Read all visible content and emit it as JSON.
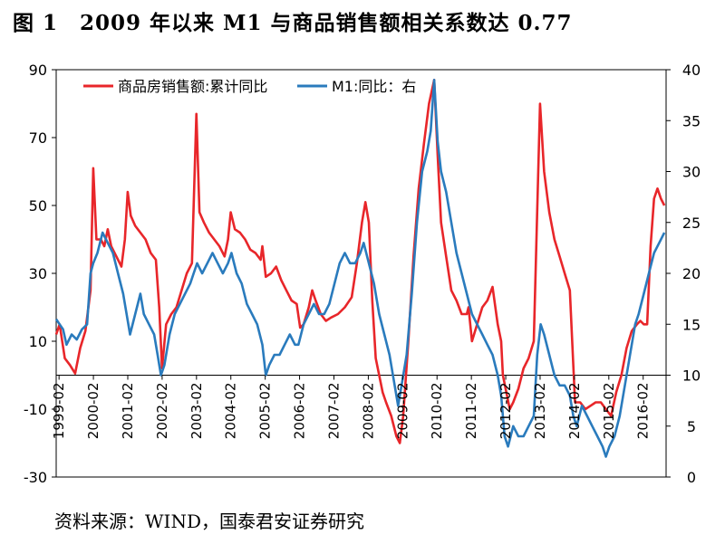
{
  "figure": {
    "title": "图 1　2009 年以来 M1 与商品销售额相关系数达 0.77",
    "source": "资料来源：WIND，国泰君安证券研究"
  },
  "chart_data": {
    "type": "line",
    "title": "",
    "xlabel": "",
    "ylabel": "",
    "x_ticks": [
      "1999-02",
      "2000-02",
      "2001-02",
      "2002-02",
      "2003-02",
      "2004-02",
      "2005-02",
      "2006-02",
      "2007-02",
      "2008-02",
      "2009-02",
      "2010-02",
      "2011-02",
      "2012-02",
      "2013-02",
      "2014-02",
      "2015-02",
      "2016-02"
    ],
    "x_range": [
      1999.0,
      2016.75
    ],
    "y_left": {
      "ticks": [
        90,
        70,
        50,
        30,
        10,
        -10,
        -30
      ],
      "range": [
        -30,
        90
      ]
    },
    "y_right": {
      "ticks": [
        40,
        35,
        30,
        25,
        20,
        15,
        10,
        5,
        0
      ],
      "range": [
        0,
        40
      ]
    },
    "zero_line": 0,
    "legend_position": "top-left",
    "series": [
      {
        "name": "商品房销售额:累计同比",
        "axis": "left",
        "color": "#e8262a",
        "points": [
          [
            1999.0,
            12
          ],
          [
            1999.1,
            15
          ],
          [
            1999.25,
            5
          ],
          [
            1999.4,
            3
          ],
          [
            1999.55,
            0.5
          ],
          [
            1999.7,
            8
          ],
          [
            1999.85,
            13
          ],
          [
            2000.0,
            25
          ],
          [
            2000.08,
            61
          ],
          [
            2000.17,
            40
          ],
          [
            2000.3,
            40
          ],
          [
            2000.4,
            38
          ],
          [
            2000.5,
            43
          ],
          [
            2000.6,
            38
          ],
          [
            2000.75,
            35
          ],
          [
            2000.9,
            32
          ],
          [
            2001.0,
            40
          ],
          [
            2001.08,
            54
          ],
          [
            2001.17,
            47
          ],
          [
            2001.3,
            44
          ],
          [
            2001.45,
            42
          ],
          [
            2001.6,
            40
          ],
          [
            2001.75,
            36
          ],
          [
            2001.9,
            34
          ],
          [
            2002.0,
            20
          ],
          [
            2002.08,
            2
          ],
          [
            2002.2,
            15
          ],
          [
            2002.35,
            18
          ],
          [
            2002.5,
            20
          ],
          [
            2002.65,
            25
          ],
          [
            2002.8,
            30
          ],
          [
            2002.95,
            33
          ],
          [
            2003.08,
            77
          ],
          [
            2003.17,
            48
          ],
          [
            2003.3,
            45
          ],
          [
            2003.45,
            42
          ],
          [
            2003.6,
            40
          ],
          [
            2003.75,
            38
          ],
          [
            2003.9,
            35
          ],
          [
            2004.0,
            40
          ],
          [
            2004.08,
            48
          ],
          [
            2004.2,
            43
          ],
          [
            2004.35,
            42
          ],
          [
            2004.5,
            40
          ],
          [
            2004.65,
            37
          ],
          [
            2004.8,
            36
          ],
          [
            2004.95,
            34
          ],
          [
            2005.0,
            38
          ],
          [
            2005.1,
            29
          ],
          [
            2005.25,
            30
          ],
          [
            2005.4,
            32
          ],
          [
            2005.55,
            28
          ],
          [
            2005.7,
            25
          ],
          [
            2005.85,
            22
          ],
          [
            2006.0,
            21
          ],
          [
            2006.1,
            14
          ],
          [
            2006.2,
            15
          ],
          [
            2006.35,
            20
          ],
          [
            2006.45,
            25
          ],
          [
            2006.55,
            22
          ],
          [
            2006.7,
            18
          ],
          [
            2006.85,
            16
          ],
          [
            2007.0,
            17
          ],
          [
            2007.2,
            18
          ],
          [
            2007.4,
            20
          ],
          [
            2007.6,
            23
          ],
          [
            2007.75,
            33
          ],
          [
            2007.9,
            45
          ],
          [
            2008.0,
            51
          ],
          [
            2008.1,
            45
          ],
          [
            2008.2,
            22
          ],
          [
            2008.3,
            5
          ],
          [
            2008.4,
            0
          ],
          [
            2008.5,
            -5
          ],
          [
            2008.6,
            -8
          ],
          [
            2008.75,
            -12
          ],
          [
            2008.9,
            -18
          ],
          [
            2009.0,
            -20
          ],
          [
            2009.1,
            -12
          ],
          [
            2009.25,
            10
          ],
          [
            2009.4,
            35
          ],
          [
            2009.55,
            55
          ],
          [
            2009.7,
            68
          ],
          [
            2009.85,
            80
          ],
          [
            2010.0,
            87
          ],
          [
            2010.1,
            65
          ],
          [
            2010.2,
            45
          ],
          [
            2010.35,
            35
          ],
          [
            2010.5,
            25
          ],
          [
            2010.65,
            22
          ],
          [
            2010.8,
            18
          ],
          [
            2010.95,
            18
          ],
          [
            2011.0,
            20
          ],
          [
            2011.1,
            10
          ],
          [
            2011.25,
            15
          ],
          [
            2011.4,
            20
          ],
          [
            2011.55,
            22
          ],
          [
            2011.7,
            26
          ],
          [
            2011.85,
            15
          ],
          [
            2011.95,
            10
          ],
          [
            2012.0,
            0
          ],
          [
            2012.1,
            -5
          ],
          [
            2012.2,
            -10
          ],
          [
            2012.3,
            -8
          ],
          [
            2012.45,
            -4
          ],
          [
            2012.6,
            2
          ],
          [
            2012.75,
            5
          ],
          [
            2012.9,
            10
          ],
          [
            2013.08,
            80
          ],
          [
            2013.2,
            60
          ],
          [
            2013.35,
            48
          ],
          [
            2013.5,
            40
          ],
          [
            2013.65,
            35
          ],
          [
            2013.8,
            30
          ],
          [
            2013.95,
            25
          ],
          [
            2014.1,
            -8
          ],
          [
            2014.25,
            -8
          ],
          [
            2014.4,
            -10
          ],
          [
            2014.55,
            -9
          ],
          [
            2014.7,
            -8
          ],
          [
            2014.85,
            -8
          ],
          [
            2015.0,
            -10
          ],
          [
            2015.15,
            -12
          ],
          [
            2015.3,
            -5
          ],
          [
            2015.45,
            0
          ],
          [
            2015.6,
            8
          ],
          [
            2015.75,
            13
          ],
          [
            2015.9,
            15
          ],
          [
            2016.0,
            16
          ],
          [
            2016.1,
            15
          ],
          [
            2016.2,
            15
          ],
          [
            2016.3,
            38
          ],
          [
            2016.4,
            52
          ],
          [
            2016.5,
            55
          ],
          [
            2016.6,
            52
          ],
          [
            2016.7,
            50
          ]
        ]
      },
      {
        "name": "M1:同比：右",
        "axis": "right",
        "color": "#2a7bbd",
        "points": [
          [
            1999.0,
            15.5
          ],
          [
            1999.1,
            15
          ],
          [
            1999.2,
            14.5
          ],
          [
            1999.3,
            13
          ],
          [
            1999.45,
            14
          ],
          [
            1999.6,
            13.5
          ],
          [
            1999.75,
            14.5
          ],
          [
            1999.9,
            15
          ],
          [
            2000.0,
            20
          ],
          [
            2000.08,
            21
          ],
          [
            2000.2,
            22
          ],
          [
            2000.35,
            24
          ],
          [
            2000.5,
            23
          ],
          [
            2000.65,
            22
          ],
          [
            2000.8,
            20
          ],
          [
            2000.95,
            18
          ],
          [
            2001.05,
            16
          ],
          [
            2001.15,
            14
          ],
          [
            2001.3,
            16
          ],
          [
            2001.45,
            18
          ],
          [
            2001.55,
            16
          ],
          [
            2001.7,
            15
          ],
          [
            2001.85,
            14
          ],
          [
            2001.95,
            12
          ],
          [
            2002.05,
            10
          ],
          [
            2002.15,
            11
          ],
          [
            2002.3,
            14
          ],
          [
            2002.45,
            16
          ],
          [
            2002.6,
            17
          ],
          [
            2002.75,
            18
          ],
          [
            2002.9,
            19
          ],
          [
            2003.0,
            20
          ],
          [
            2003.1,
            21
          ],
          [
            2003.25,
            20
          ],
          [
            2003.4,
            21
          ],
          [
            2003.55,
            22
          ],
          [
            2003.7,
            21
          ],
          [
            2003.85,
            20
          ],
          [
            2004.0,
            21
          ],
          [
            2004.1,
            22
          ],
          [
            2004.25,
            20
          ],
          [
            2004.4,
            19
          ],
          [
            2004.55,
            17
          ],
          [
            2004.7,
            16
          ],
          [
            2004.85,
            15
          ],
          [
            2005.0,
            13
          ],
          [
            2005.1,
            10
          ],
          [
            2005.2,
            11
          ],
          [
            2005.35,
            12
          ],
          [
            2005.5,
            12
          ],
          [
            2005.65,
            13
          ],
          [
            2005.8,
            14
          ],
          [
            2005.95,
            13
          ],
          [
            2006.05,
            13
          ],
          [
            2006.2,
            15
          ],
          [
            2006.35,
            16
          ],
          [
            2006.5,
            17
          ],
          [
            2006.65,
            16
          ],
          [
            2006.8,
            16
          ],
          [
            2006.95,
            17
          ],
          [
            2007.1,
            19
          ],
          [
            2007.25,
            21
          ],
          [
            2007.4,
            22
          ],
          [
            2007.55,
            21
          ],
          [
            2007.7,
            21
          ],
          [
            2007.85,
            22
          ],
          [
            2007.95,
            23
          ],
          [
            2008.1,
            21
          ],
          [
            2008.25,
            19
          ],
          [
            2008.4,
            16
          ],
          [
            2008.55,
            14
          ],
          [
            2008.7,
            12
          ],
          [
            2008.85,
            9
          ],
          [
            2008.95,
            7
          ],
          [
            2009.05,
            9
          ],
          [
            2009.2,
            12
          ],
          [
            2009.35,
            18
          ],
          [
            2009.5,
            25
          ],
          [
            2009.65,
            30
          ],
          [
            2009.8,
            32
          ],
          [
            2009.9,
            34
          ],
          [
            2010.0,
            39
          ],
          [
            2010.1,
            33
          ],
          [
            2010.2,
            30
          ],
          [
            2010.35,
            28
          ],
          [
            2010.5,
            25
          ],
          [
            2010.65,
            22
          ],
          [
            2010.8,
            20
          ],
          [
            2010.95,
            18
          ],
          [
            2011.1,
            16
          ],
          [
            2011.25,
            15
          ],
          [
            2011.4,
            14
          ],
          [
            2011.55,
            13
          ],
          [
            2011.7,
            12
          ],
          [
            2011.85,
            10
          ],
          [
            2011.95,
            8
          ],
          [
            2012.05,
            4
          ],
          [
            2012.15,
            3
          ],
          [
            2012.3,
            5
          ],
          [
            2012.45,
            4
          ],
          [
            2012.6,
            4
          ],
          [
            2012.75,
            5
          ],
          [
            2012.9,
            6
          ],
          [
            2013.0,
            12
          ],
          [
            2013.1,
            15
          ],
          [
            2013.2,
            14
          ],
          [
            2013.35,
            12
          ],
          [
            2013.5,
            10
          ],
          [
            2013.65,
            9
          ],
          [
            2013.8,
            9
          ],
          [
            2013.95,
            8
          ],
          [
            2014.05,
            6
          ],
          [
            2014.15,
            5
          ],
          [
            2014.3,
            7
          ],
          [
            2014.45,
            6
          ],
          [
            2014.6,
            5
          ],
          [
            2014.75,
            4
          ],
          [
            2014.9,
            3
          ],
          [
            2015.0,
            2
          ],
          [
            2015.1,
            3
          ],
          [
            2015.25,
            4
          ],
          [
            2015.4,
            6
          ],
          [
            2015.55,
            9
          ],
          [
            2015.7,
            12
          ],
          [
            2015.85,
            15
          ],
          [
            2015.95,
            16
          ],
          [
            2016.1,
            18
          ],
          [
            2016.25,
            20
          ],
          [
            2016.4,
            22
          ],
          [
            2016.55,
            23
          ],
          [
            2016.7,
            24
          ]
        ]
      }
    ]
  }
}
